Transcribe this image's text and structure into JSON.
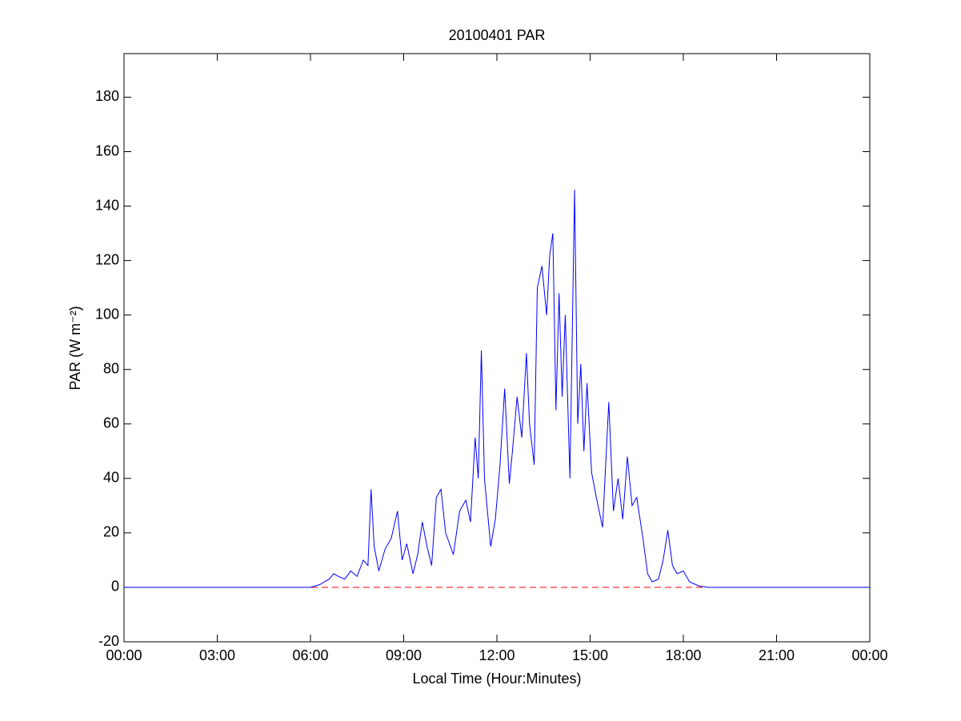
{
  "chart_data": {
    "type": "line",
    "title": "20100401 PAR",
    "xlabel": "Local Time (Hour:Minutes)",
    "ylabel": "PAR (W m⁻²)",
    "x": [
      0,
      6,
      6.3,
      6.6,
      6.75,
      6.9,
      7.1,
      7.3,
      7.5,
      7.7,
      7.85,
      7.95,
      8.05,
      8.2,
      8.4,
      8.6,
      8.8,
      8.95,
      9.1,
      9.3,
      9.45,
      9.6,
      9.75,
      9.9,
      10.05,
      10.2,
      10.35,
      10.6,
      10.8,
      11.0,
      11.15,
      11.3,
      11.4,
      11.5,
      11.6,
      11.8,
      11.95,
      12.1,
      12.25,
      12.4,
      12.5,
      12.65,
      12.8,
      12.95,
      13.05,
      13.2,
      13.3,
      13.45,
      13.6,
      13.7,
      13.8,
      13.9,
      14.0,
      14.1,
      14.2,
      14.35,
      14.5,
      14.6,
      14.7,
      14.8,
      14.9,
      15.05,
      15.2,
      15.4,
      15.5,
      15.6,
      15.75,
      15.9,
      16.05,
      16.2,
      16.35,
      16.5,
      16.7,
      16.85,
      17.0,
      17.2,
      17.35,
      17.5,
      17.65,
      17.8,
      18.0,
      18.2,
      18.5,
      18.8,
      24
    ],
    "values": [
      0,
      0,
      1,
      3,
      5,
      4,
      3,
      6,
      4,
      10,
      8,
      36,
      15,
      6,
      14,
      18,
      28,
      10,
      16,
      5,
      12,
      24,
      15,
      8,
      33,
      36,
      20,
      12,
      28,
      32,
      24,
      55,
      40,
      87,
      40,
      15,
      25,
      45,
      73,
      38,
      50,
      70,
      55,
      86,
      60,
      45,
      110,
      118,
      100,
      122,
      130,
      65,
      108,
      70,
      100,
      40,
      146,
      60,
      82,
      50,
      75,
      42,
      33,
      22,
      45,
      68,
      28,
      40,
      25,
      48,
      30,
      33,
      18,
      5,
      2,
      3,
      10,
      21,
      8,
      5,
      6,
      2,
      0.5,
      0,
      0
    ],
    "color": "#0000ff",
    "reference_line": {
      "value": 0,
      "color": "#ff0000",
      "dashed": true
    },
    "xlim": [
      0,
      24
    ],
    "xticks": [
      {
        "value": 0,
        "label": "00:00"
      },
      {
        "value": 3,
        "label": "03:00"
      },
      {
        "value": 6,
        "label": "06:00"
      },
      {
        "value": 9,
        "label": "09:00"
      },
      {
        "value": 12,
        "label": "12:00"
      },
      {
        "value": 15,
        "label": "15:00"
      },
      {
        "value": 18,
        "label": "18:00"
      },
      {
        "value": 21,
        "label": "21:00"
      },
      {
        "value": 24,
        "label": "00:00"
      }
    ],
    "ylim": [
      -20,
      196
    ],
    "yticks": [
      -20,
      0,
      20,
      40,
      60,
      80,
      100,
      120,
      140,
      160,
      180
    ]
  }
}
